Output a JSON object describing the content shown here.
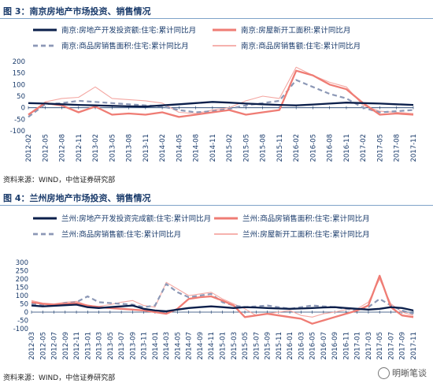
{
  "panels": [
    {
      "title": "图 3：南京房地产市场投资、销售情况",
      "source": "资料来源：WIND，中信证券研究部"
    },
    {
      "title": "图 4：兰州房地产市场投资、销售情况",
      "source": "资料来源：WIND，中信证券研究部"
    }
  ],
  "watermark": "明晰笔谈",
  "colors": {
    "navy": "#0b1f4b",
    "red": "#ef7c74",
    "gray": "#8c98b6",
    "pink": "#f4a7a2",
    "title": "#1a3b6b"
  },
  "chart_data": [
    {
      "type": "line",
      "ylim": [
        -100,
        200
      ],
      "yticks": [
        -100,
        -50,
        0,
        50,
        100,
        150,
        200
      ],
      "x": [
        "2012-02",
        "2012-05",
        "2012-08",
        "2012-11",
        "2013-02",
        "2013-05",
        "2013-08",
        "2013-11",
        "2014-02",
        "2014-05",
        "2014-08",
        "2014-11",
        "2015-02",
        "2015-05",
        "2015-08",
        "2015-11",
        "2016-02",
        "2016-05",
        "2016-08",
        "2016-11",
        "2017-02",
        "2017-05",
        "2017-08",
        "2017-11"
      ],
      "legend": "top",
      "series": [
        {
          "name": "南京:房地产开发投资额:住宅:累计同比月",
          "color": "#0b1f4b",
          "style": "solid-thick",
          "values": [
            20,
            18,
            15,
            12,
            10,
            8,
            6,
            5,
            10,
            15,
            20,
            25,
            22,
            18,
            15,
            12,
            10,
            14,
            18,
            22,
            20,
            18,
            15,
            12
          ]
        },
        {
          "name": "南京:房屋新开工面积:累计同比月",
          "color": "#ef7c74",
          "style": "solid-thick",
          "values": [
            -30,
            20,
            10,
            -20,
            5,
            -30,
            -25,
            -30,
            -20,
            -40,
            -30,
            -20,
            -10,
            -30,
            -20,
            -10,
            160,
            140,
            100,
            80,
            20,
            -30,
            -25,
            -30
          ]
        },
        {
          "name": "南京:商品房销售面积:住宅:累计同比月",
          "color": "#8c98b6",
          "style": "dashed",
          "values": [
            -40,
            15,
            20,
            30,
            25,
            20,
            15,
            10,
            5,
            -10,
            -20,
            -15,
            -5,
            10,
            20,
            30,
            120,
            90,
            60,
            40,
            0,
            -20,
            -15,
            -10
          ]
        },
        {
          "name": "南京:商品房销售额:住宅:累计同比月",
          "color": "#f4a7a2",
          "style": "solid-thin",
          "values": [
            -30,
            25,
            40,
            45,
            90,
            40,
            35,
            30,
            20,
            -20,
            -25,
            -10,
            0,
            30,
            50,
            40,
            175,
            140,
            110,
            90,
            10,
            -15,
            -20,
            -25
          ]
        }
      ]
    },
    {
      "type": "line",
      "ylim": [
        -100,
        300
      ],
      "yticks": [
        -100,
        -50,
        0,
        50,
        100,
        150,
        200,
        250,
        300
      ],
      "x": [
        "2012-03",
        "2012-05",
        "2012-07",
        "2012-09",
        "2012-11",
        "2013-01",
        "2013-03",
        "2013-05",
        "2013-07",
        "2013-09",
        "2013-11",
        "2014-01",
        "2014-03",
        "2014-05",
        "2014-07",
        "2014-09",
        "2014-11",
        "2015-01",
        "2015-03",
        "2015-05",
        "2015-07",
        "2015-09",
        "2015-11",
        "2016-01",
        "2016-03",
        "2016-05",
        "2016-07",
        "2016-09",
        "2016-11",
        "2017-01",
        "2017-03",
        "2017-05",
        "2017-07",
        "2017-09",
        "2017-11"
      ],
      "legend": "top",
      "series": [
        {
          "name": "兰州:房地产开发投资完成额:住宅:累计同比月",
          "color": "#0b1f4b",
          "style": "solid-thick",
          "values": [
            40,
            35,
            38,
            42,
            45,
            30,
            25,
            30,
            35,
            40,
            20,
            10,
            5,
            15,
            25,
            30,
            35,
            30,
            25,
            30,
            28,
            25,
            22,
            20,
            22,
            25,
            28,
            30,
            25,
            20,
            15,
            20,
            30,
            25,
            10
          ]
        },
        {
          "name": "兰州:商品房销售面积:住宅:累计同比月",
          "color": "#ef7c74",
          "style": "solid-thick",
          "values": [
            60,
            50,
            45,
            50,
            55,
            40,
            30,
            25,
            20,
            15,
            10,
            0,
            -10,
            20,
            80,
            90,
            95,
            70,
            40,
            -30,
            -20,
            -10,
            -20,
            -30,
            -40,
            -70,
            -50,
            -30,
            -10,
            10,
            40,
            220,
            30,
            -20,
            -30
          ]
        },
        {
          "name": "兰州:商品房销售额:住宅:累计同比月",
          "color": "#8c98b6",
          "style": "dashed",
          "values": [
            50,
            45,
            40,
            55,
            60,
            95,
            60,
            55,
            50,
            45,
            30,
            40,
            170,
            120,
            90,
            100,
            110,
            60,
            40,
            30,
            35,
            40,
            30,
            20,
            30,
            40,
            35,
            30,
            20,
            10,
            30,
            80,
            40,
            10,
            -10
          ]
        },
        {
          "name": "兰州:房屋新开工面积:住宅:累计同比月",
          "color": "#f4a7a2",
          "style": "solid-thin",
          "values": [
            70,
            55,
            50,
            60,
            65,
            40,
            35,
            45,
            60,
            70,
            40,
            30,
            180,
            140,
            100,
            110,
            120,
            80,
            50,
            20,
            -20,
            -10,
            0,
            10,
            -20,
            -30,
            -10,
            0,
            15,
            20,
            60,
            200,
            50,
            0,
            -20
          ]
        }
      ]
    }
  ]
}
